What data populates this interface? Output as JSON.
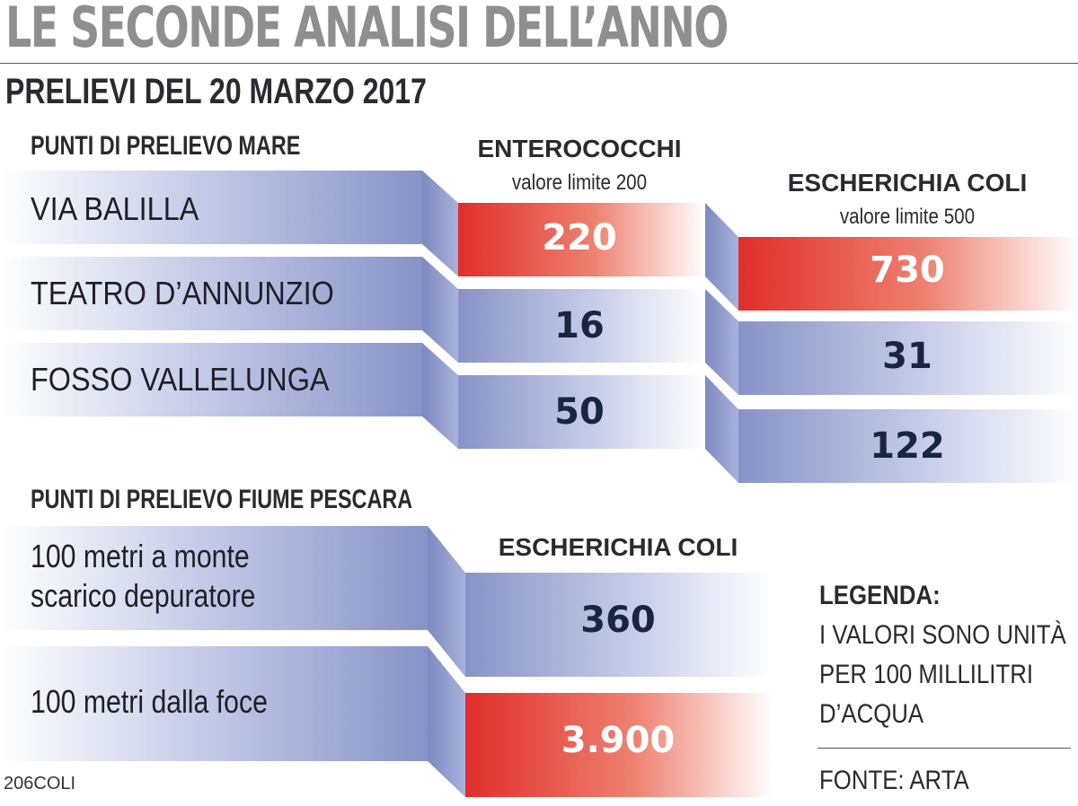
{
  "headline": "LE SECONDE ANALISI DELL’ANNO",
  "subheadline": "PRELIEVI DEL 20 MARZO 2017",
  "chart_data": [
    {
      "type": "table",
      "section_title": "PUNTI DI PRELIEVO MARE",
      "columns": [
        {
          "name": "ENTEROCOCCHI",
          "limit_label": "valore limite 200",
          "limit": 200
        },
        {
          "name": "ESCHERICHIA COLI",
          "limit_label": "valore limite 500",
          "limit": 500
        }
      ],
      "rows": [
        {
          "label": "VIA BALILLA",
          "values": [
            "220",
            "730"
          ],
          "exceeds": [
            true,
            true
          ]
        },
        {
          "label": "TEATRO D’ANNUNZIO",
          "values": [
            "16",
            "31"
          ],
          "exceeds": [
            false,
            false
          ]
        },
        {
          "label": "FOSSO VALLELUNGA",
          "values": [
            "50",
            "122"
          ],
          "exceeds": [
            false,
            false
          ]
        }
      ]
    },
    {
      "type": "table",
      "section_title": "PUNTI DI PRELIEVO FIUME PESCARA",
      "columns": [
        {
          "name": "ESCHERICHIA COLI"
        }
      ],
      "rows": [
        {
          "label_lines": [
            "100 metri a monte",
            "scarico depuratore"
          ],
          "values": [
            "360"
          ],
          "exceeds": [
            false
          ]
        },
        {
          "label_lines": [
            "100 metri dalla foce"
          ],
          "values": [
            "3.900"
          ],
          "exceeds": [
            true
          ]
        }
      ]
    }
  ],
  "legend": {
    "title": "LEGENDA:",
    "lines": [
      "I VALORI SONO UNITÀ",
      "PER 100 MILLILITRI",
      "D’ACQUA"
    ]
  },
  "source": "FONTE: ARTA",
  "code": "206COLI",
  "colors": {
    "blue_band": "#8f9ccd",
    "red_band": "#e23b35",
    "headline_gray": "#8f8f8f",
    "value_dark": "#1a2540"
  }
}
